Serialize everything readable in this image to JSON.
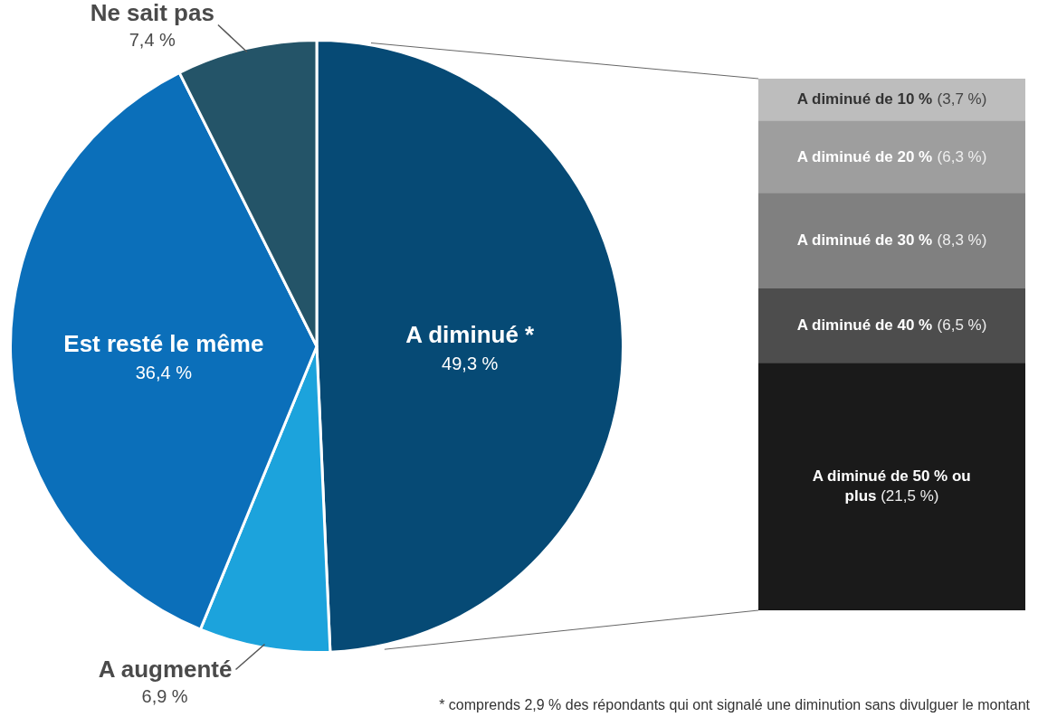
{
  "chart_data": [
    {
      "type": "pie",
      "categories": [
        "A diminué *",
        "A augmenté",
        "Est resté le même",
        "Ne sait pas"
      ],
      "values": [
        49.3,
        6.9,
        36.4,
        7.4
      ],
      "colors": [
        "#064a75",
        "#1ca3dc",
        "#0b6fba",
        "#245468"
      ],
      "value_labels": [
        "49,3 %",
        "6,9 %",
        "36,4 %",
        "7,4 %"
      ],
      "annotations": [
        "* comprends 2,9 % des répondants qui ont signalé une diminution sans divulguer le montant"
      ]
    },
    {
      "type": "bar",
      "stacked": true,
      "tick_labels": false,
      "categories": [
        null
      ],
      "series": [
        {
          "name": "A diminué de 50 % ou plus",
          "color": "#1a1a1a",
          "values": [
            21.5
          ],
          "value_labels": [
            "(21,5 %)"
          ]
        },
        {
          "name": "A diminué de 40 %",
          "color": "#4d4d4d",
          "values": [
            6.5
          ],
          "value_labels": [
            "(6,5 %)"
          ]
        },
        {
          "name": "A diminué de 30 %",
          "color": "#808080",
          "values": [
            8.3
          ],
          "value_labels": [
            "(8,3 %)"
          ]
        },
        {
          "name": "A diminué de 20 %",
          "color": "#9e9e9e",
          "values": [
            6.3
          ],
          "value_labels": [
            "(6,3 %)"
          ]
        },
        {
          "name": "A diminué de 10 %",
          "color": "#bdbdbd",
          "values": [
            3.7
          ],
          "value_labels": [
            "(3,7 %)"
          ]
        }
      ]
    }
  ]
}
